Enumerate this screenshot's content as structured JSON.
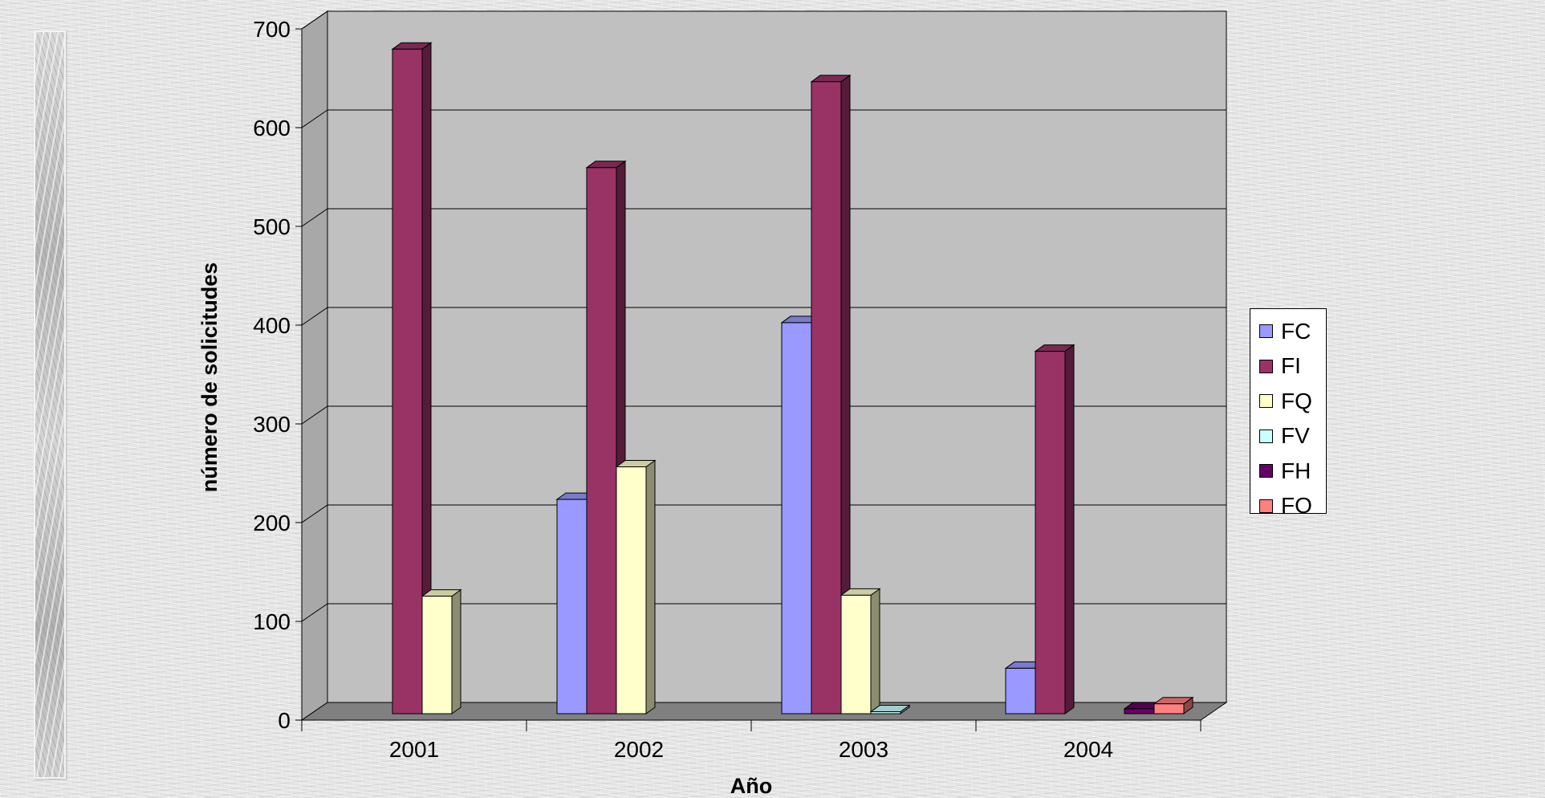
{
  "chart_data": {
    "type": "bar",
    "title": "",
    "xlabel": "Año",
    "ylabel": "número de solicitudes",
    "categories": [
      "2001",
      "2002",
      "2003",
      "2004"
    ],
    "ylim": [
      0,
      700
    ],
    "yticks": [
      0,
      100,
      200,
      300,
      400,
      500,
      600,
      700
    ],
    "grid": true,
    "legend_position": "right",
    "series": [
      {
        "name": "FC",
        "color": "#9999ff",
        "values": [
          0,
          217,
          396,
          46
        ]
      },
      {
        "name": "FI",
        "color": "#993366",
        "values": [
          673,
          553,
          640,
          367
        ]
      },
      {
        "name": "FQ",
        "color": "#ffffcc",
        "values": [
          119,
          250,
          120,
          0
        ]
      },
      {
        "name": "FV",
        "color": "#ccffff",
        "values": [
          0,
          0,
          2,
          0
        ]
      },
      {
        "name": "FH",
        "color": "#660066",
        "values": [
          0,
          0,
          0,
          5
        ]
      },
      {
        "name": "FO",
        "color": "#ff8080",
        "values": [
          0,
          0,
          0,
          10
        ]
      }
    ]
  }
}
